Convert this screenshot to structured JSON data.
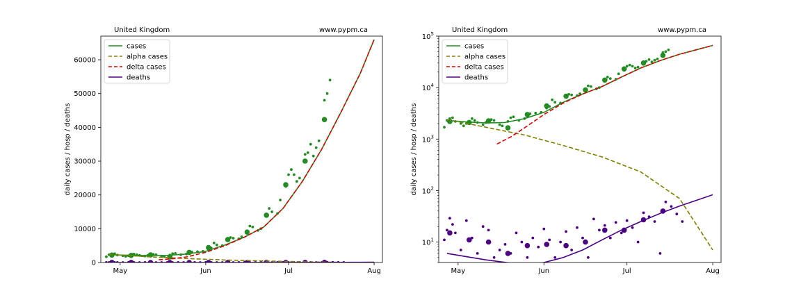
{
  "chart_data": [
    {
      "type": "line",
      "scale": "linear",
      "title_left": "United Kingdom",
      "title_right": "www.pypm.ca",
      "ylabel": "daily cases / hosp / deaths",
      "xlabel": "",
      "xlim": [
        "2021-04-24",
        "2021-08-04"
      ],
      "ylim": [
        0,
        67000
      ],
      "xticks": [
        {
          "date": "2021-05-01",
          "label": "May"
        },
        {
          "date": "2021-06-01",
          "label": "Jun"
        },
        {
          "date": "2021-07-01",
          "label": "Jul"
        },
        {
          "date": "2021-08-01",
          "label": "Aug"
        }
      ],
      "yticks": [
        0,
        10000,
        20000,
        30000,
        40000,
        50000,
        60000
      ],
      "grid": false,
      "legend": {
        "placement": "top-left",
        "entries": [
          {
            "name": "cases",
            "color": "#228B22",
            "style": "solid"
          },
          {
            "name": "alpha cases",
            "color": "#808000",
            "style": "dashed"
          },
          {
            "name": "delta cases",
            "color": "#DD0000",
            "style": "dashed"
          },
          {
            "name": "deaths",
            "color": "#4B0082",
            "style": "solid"
          }
        ]
      },
      "series": [
        {
          "name": "cases",
          "color": "#228B22",
          "style": "solid",
          "points": [
            [
              "2021-04-27",
              2300
            ],
            [
              "2021-05-04",
              2150
            ],
            [
              "2021-05-11",
              2050
            ],
            [
              "2021-05-18",
              2100
            ],
            [
              "2021-05-25",
              2500
            ],
            [
              "2021-06-01",
              3300
            ],
            [
              "2021-06-08",
              5200
            ],
            [
              "2021-06-15",
              7500
            ],
            [
              "2021-06-22",
              10500
            ],
            [
              "2021-06-29",
              16000
            ],
            [
              "2021-07-06",
              24000
            ],
            [
              "2021-07-13",
              33500
            ],
            [
              "2021-07-20",
              44500
            ],
            [
              "2021-07-27",
              56000
            ],
            [
              "2021-08-01",
              66000
            ]
          ]
        },
        {
          "name": "alpha cases",
          "color": "#808000",
          "style": "dashed",
          "points": [
            [
              "2021-04-27",
              2400
            ],
            [
              "2021-05-11",
              1700
            ],
            [
              "2021-05-25",
              1200
            ],
            [
              "2021-06-08",
              750
            ],
            [
              "2021-06-22",
              450
            ],
            [
              "2021-07-06",
              230
            ],
            [
              "2021-07-20",
              70
            ],
            [
              "2021-08-01",
              7
            ]
          ]
        },
        {
          "name": "delta cases",
          "color": "#DD0000",
          "style": "dashed",
          "points": [
            [
              "2021-05-15",
              800
            ],
            [
              "2021-05-20",
              1100
            ],
            [
              "2021-05-25",
              1650
            ],
            [
              "2021-06-01",
              3000
            ],
            [
              "2021-06-08",
              5000
            ],
            [
              "2021-06-15",
              7500
            ],
            [
              "2021-06-22",
              10500
            ],
            [
              "2021-06-29",
              16000
            ],
            [
              "2021-07-06",
              24000
            ],
            [
              "2021-07-13",
              33500
            ],
            [
              "2021-07-20",
              44500
            ],
            [
              "2021-07-27",
              56000
            ],
            [
              "2021-08-01",
              66000
            ]
          ]
        },
        {
          "name": "deaths",
          "color": "#4B0082",
          "style": "solid",
          "points": [
            [
              "2021-04-27",
              6
            ],
            [
              "2021-05-11",
              4.5
            ],
            [
              "2021-05-25",
              3.6
            ],
            [
              "2021-06-01",
              4
            ],
            [
              "2021-06-08",
              5
            ],
            [
              "2021-06-15",
              7
            ],
            [
              "2021-06-22",
              11
            ],
            [
              "2021-06-29",
              17
            ],
            [
              "2021-07-06",
              25
            ],
            [
              "2021-07-13",
              36
            ],
            [
              "2021-07-20",
              50
            ],
            [
              "2021-07-27",
              67
            ],
            [
              "2021-08-01",
              83
            ]
          ]
        }
      ],
      "scatter": [
        {
          "name": "cases-daily",
          "color": "#228B22",
          "size": "small",
          "points": [
            [
              "2021-04-26",
              1700
            ],
            [
              "2021-04-27",
              2300
            ],
            [
              "2021-04-28",
              2500
            ],
            [
              "2021-04-29",
              2600
            ],
            [
              "2021-04-30",
              2200
            ],
            [
              "2021-05-02",
              2000
            ],
            [
              "2021-05-03",
              1800
            ],
            [
              "2021-05-04",
              2000
            ],
            [
              "2021-05-05",
              2100
            ],
            [
              "2021-05-06",
              2500
            ],
            [
              "2021-05-07",
              2300
            ],
            [
              "2021-05-08",
              2100
            ],
            [
              "2021-05-10",
              1900
            ],
            [
              "2021-05-11",
              2100
            ],
            [
              "2021-05-12",
              2200
            ],
            [
              "2021-05-13",
              2400
            ],
            [
              "2021-05-14",
              2300
            ],
            [
              "2021-05-16",
              1900
            ],
            [
              "2021-05-17",
              1800
            ],
            [
              "2021-05-19",
              2200
            ],
            [
              "2021-05-20",
              2600
            ],
            [
              "2021-05-21",
              2700
            ],
            [
              "2021-05-23",
              2300
            ],
            [
              "2021-05-25",
              2500
            ],
            [
              "2021-05-26",
              3000
            ],
            [
              "2021-05-27",
              3100
            ],
            [
              "2021-05-29",
              3200
            ],
            [
              "2021-05-31",
              3300
            ],
            [
              "2021-06-02",
              4000
            ],
            [
              "2021-06-03",
              4300
            ],
            [
              "2021-06-04",
              5800
            ],
            [
              "2021-06-05",
              5200
            ],
            [
              "2021-06-07",
              5000
            ],
            [
              "2021-06-09",
              6500
            ],
            [
              "2021-06-10",
              7400
            ],
            [
              "2021-06-11",
              7200
            ],
            [
              "2021-06-13",
              7000
            ],
            [
              "2021-06-14",
              7600
            ],
            [
              "2021-06-16",
              9000
            ],
            [
              "2021-06-17",
              10800
            ],
            [
              "2021-06-18",
              10500
            ],
            [
              "2021-06-20",
              9500
            ],
            [
              "2021-06-21",
              10000
            ],
            [
              "2021-06-23",
              14000
            ],
            [
              "2021-06-24",
              16000
            ],
            [
              "2021-06-25",
              15000
            ],
            [
              "2021-06-27",
              14500
            ],
            [
              "2021-06-28",
              18500
            ],
            [
              "2021-06-30",
              22500
            ],
            [
              "2021-07-01",
              26000
            ],
            [
              "2021-07-02",
              27500
            ],
            [
              "2021-07-03",
              26000
            ],
            [
              "2021-07-04",
              24000
            ],
            [
              "2021-07-05",
              25000
            ],
            [
              "2021-07-07",
              32000
            ],
            [
              "2021-07-08",
              32500
            ],
            [
              "2021-07-09",
              35000
            ],
            [
              "2021-07-10",
              31500
            ],
            [
              "2021-07-11",
              34000
            ],
            [
              "2021-07-12",
              36000
            ],
            [
              "2021-07-14",
              48000
            ],
            [
              "2021-07-15",
              50000
            ],
            [
              "2021-07-16",
              54000
            ]
          ]
        },
        {
          "name": "cases-weekly",
          "color": "#228B22",
          "size": "large",
          "points": [
            [
              "2021-04-28",
              2200
            ],
            [
              "2021-05-05",
              2100
            ],
            [
              "2021-05-12",
              2250
            ],
            [
              "2021-05-19",
              1650
            ],
            [
              "2021-05-26",
              3000
            ],
            [
              "2021-06-02",
              4400
            ],
            [
              "2021-06-09",
              6800
            ],
            [
              "2021-06-16",
              9000
            ],
            [
              "2021-06-23",
              14000
            ],
            [
              "2021-06-30",
              23000
            ],
            [
              "2021-07-07",
              30000
            ],
            [
              "2021-07-14",
              42300
            ]
          ]
        },
        {
          "name": "deaths-daily",
          "color": "#4B0082",
          "size": "small",
          "points": [
            [
              "2021-04-26",
              11
            ],
            [
              "2021-04-27",
              17
            ],
            [
              "2021-04-28",
              29
            ],
            [
              "2021-04-29",
              22
            ],
            [
              "2021-04-30",
              15
            ],
            [
              "2021-05-02",
              7
            ],
            [
              "2021-05-04",
              26
            ],
            [
              "2021-05-06",
              12
            ],
            [
              "2021-05-08",
              6
            ],
            [
              "2021-05-10",
              20
            ],
            [
              "2021-05-12",
              17
            ],
            [
              "2021-05-14",
              5
            ],
            [
              "2021-05-16",
              7
            ],
            [
              "2021-05-18",
              9
            ],
            [
              "2021-05-20",
              6
            ],
            [
              "2021-05-22",
              15
            ],
            [
              "2021-05-24",
              10
            ],
            [
              "2021-05-26",
              5
            ],
            [
              "2021-05-28",
              12
            ],
            [
              "2021-05-30",
              8
            ],
            [
              "2021-06-01",
              18
            ],
            [
              "2021-06-03",
              11
            ],
            [
              "2021-06-05",
              5
            ],
            [
              "2021-06-07",
              10
            ],
            [
              "2021-06-09",
              16
            ],
            [
              "2021-06-11",
              7
            ],
            [
              "2021-06-13",
              19
            ],
            [
              "2021-06-15",
              12
            ],
            [
              "2021-06-17",
              5
            ],
            [
              "2021-06-19",
              28
            ],
            [
              "2021-06-21",
              17
            ],
            [
              "2021-06-23",
              21
            ],
            [
              "2021-06-25",
              12
            ],
            [
              "2021-06-27",
              24
            ],
            [
              "2021-06-29",
              15
            ],
            [
              "2021-07-01",
              26
            ],
            [
              "2021-07-03",
              19
            ],
            [
              "2021-07-05",
              10
            ],
            [
              "2021-07-07",
              37
            ],
            [
              "2021-07-09",
              31
            ],
            [
              "2021-07-11",
              25
            ],
            [
              "2021-07-13",
              6
            ],
            [
              "2021-07-15",
              60
            ],
            [
              "2021-07-17",
              49
            ],
            [
              "2021-07-19",
              35
            ],
            [
              "2021-07-21",
              25
            ]
          ]
        },
        {
          "name": "deaths-weekly",
          "color": "#4B0082",
          "size": "large",
          "points": [
            [
              "2021-04-28",
              15
            ],
            [
              "2021-05-05",
              11
            ],
            [
              "2021-05-12",
              10
            ],
            [
              "2021-05-19",
              6
            ],
            [
              "2021-05-26",
              8.5
            ],
            [
              "2021-06-02",
              9
            ],
            [
              "2021-06-09",
              8.5
            ],
            [
              "2021-06-16",
              10
            ],
            [
              "2021-06-23",
              17
            ],
            [
              "2021-06-30",
              17
            ],
            [
              "2021-07-07",
              27
            ],
            [
              "2021-07-14",
              40
            ]
          ]
        }
      ]
    },
    {
      "type": "line",
      "scale": "log",
      "title_left": "United Kingdom",
      "title_right": "www.pypm.ca",
      "ylabel": "daily cases / hosp / deaths",
      "xlabel": "",
      "xlim": [
        "2021-04-24",
        "2021-08-04"
      ],
      "ylim": [
        4,
        100000
      ],
      "xticks": [
        {
          "date": "2021-05-01",
          "label": "May"
        },
        {
          "date": "2021-06-01",
          "label": "Jun"
        },
        {
          "date": "2021-07-01",
          "label": "Jul"
        },
        {
          "date": "2021-08-01",
          "label": "Aug"
        }
      ],
      "yticks": [
        {
          "value": 10,
          "base": "10",
          "exp": "1"
        },
        {
          "value": 100,
          "base": "10",
          "exp": "2"
        },
        {
          "value": 1000,
          "base": "10",
          "exp": "3"
        },
        {
          "value": 10000,
          "base": "10",
          "exp": "4"
        },
        {
          "value": 100000,
          "base": "10",
          "exp": "5"
        }
      ],
      "grid": false,
      "legend": {
        "placement": "top-left",
        "entries": [
          {
            "name": "cases",
            "color": "#228B22",
            "style": "solid"
          },
          {
            "name": "alpha cases",
            "color": "#808000",
            "style": "dashed"
          },
          {
            "name": "delta cases",
            "color": "#DD0000",
            "style": "dashed"
          },
          {
            "name": "deaths",
            "color": "#4B0082",
            "style": "solid"
          }
        ]
      },
      "same_data_as_panel": 0
    }
  ]
}
